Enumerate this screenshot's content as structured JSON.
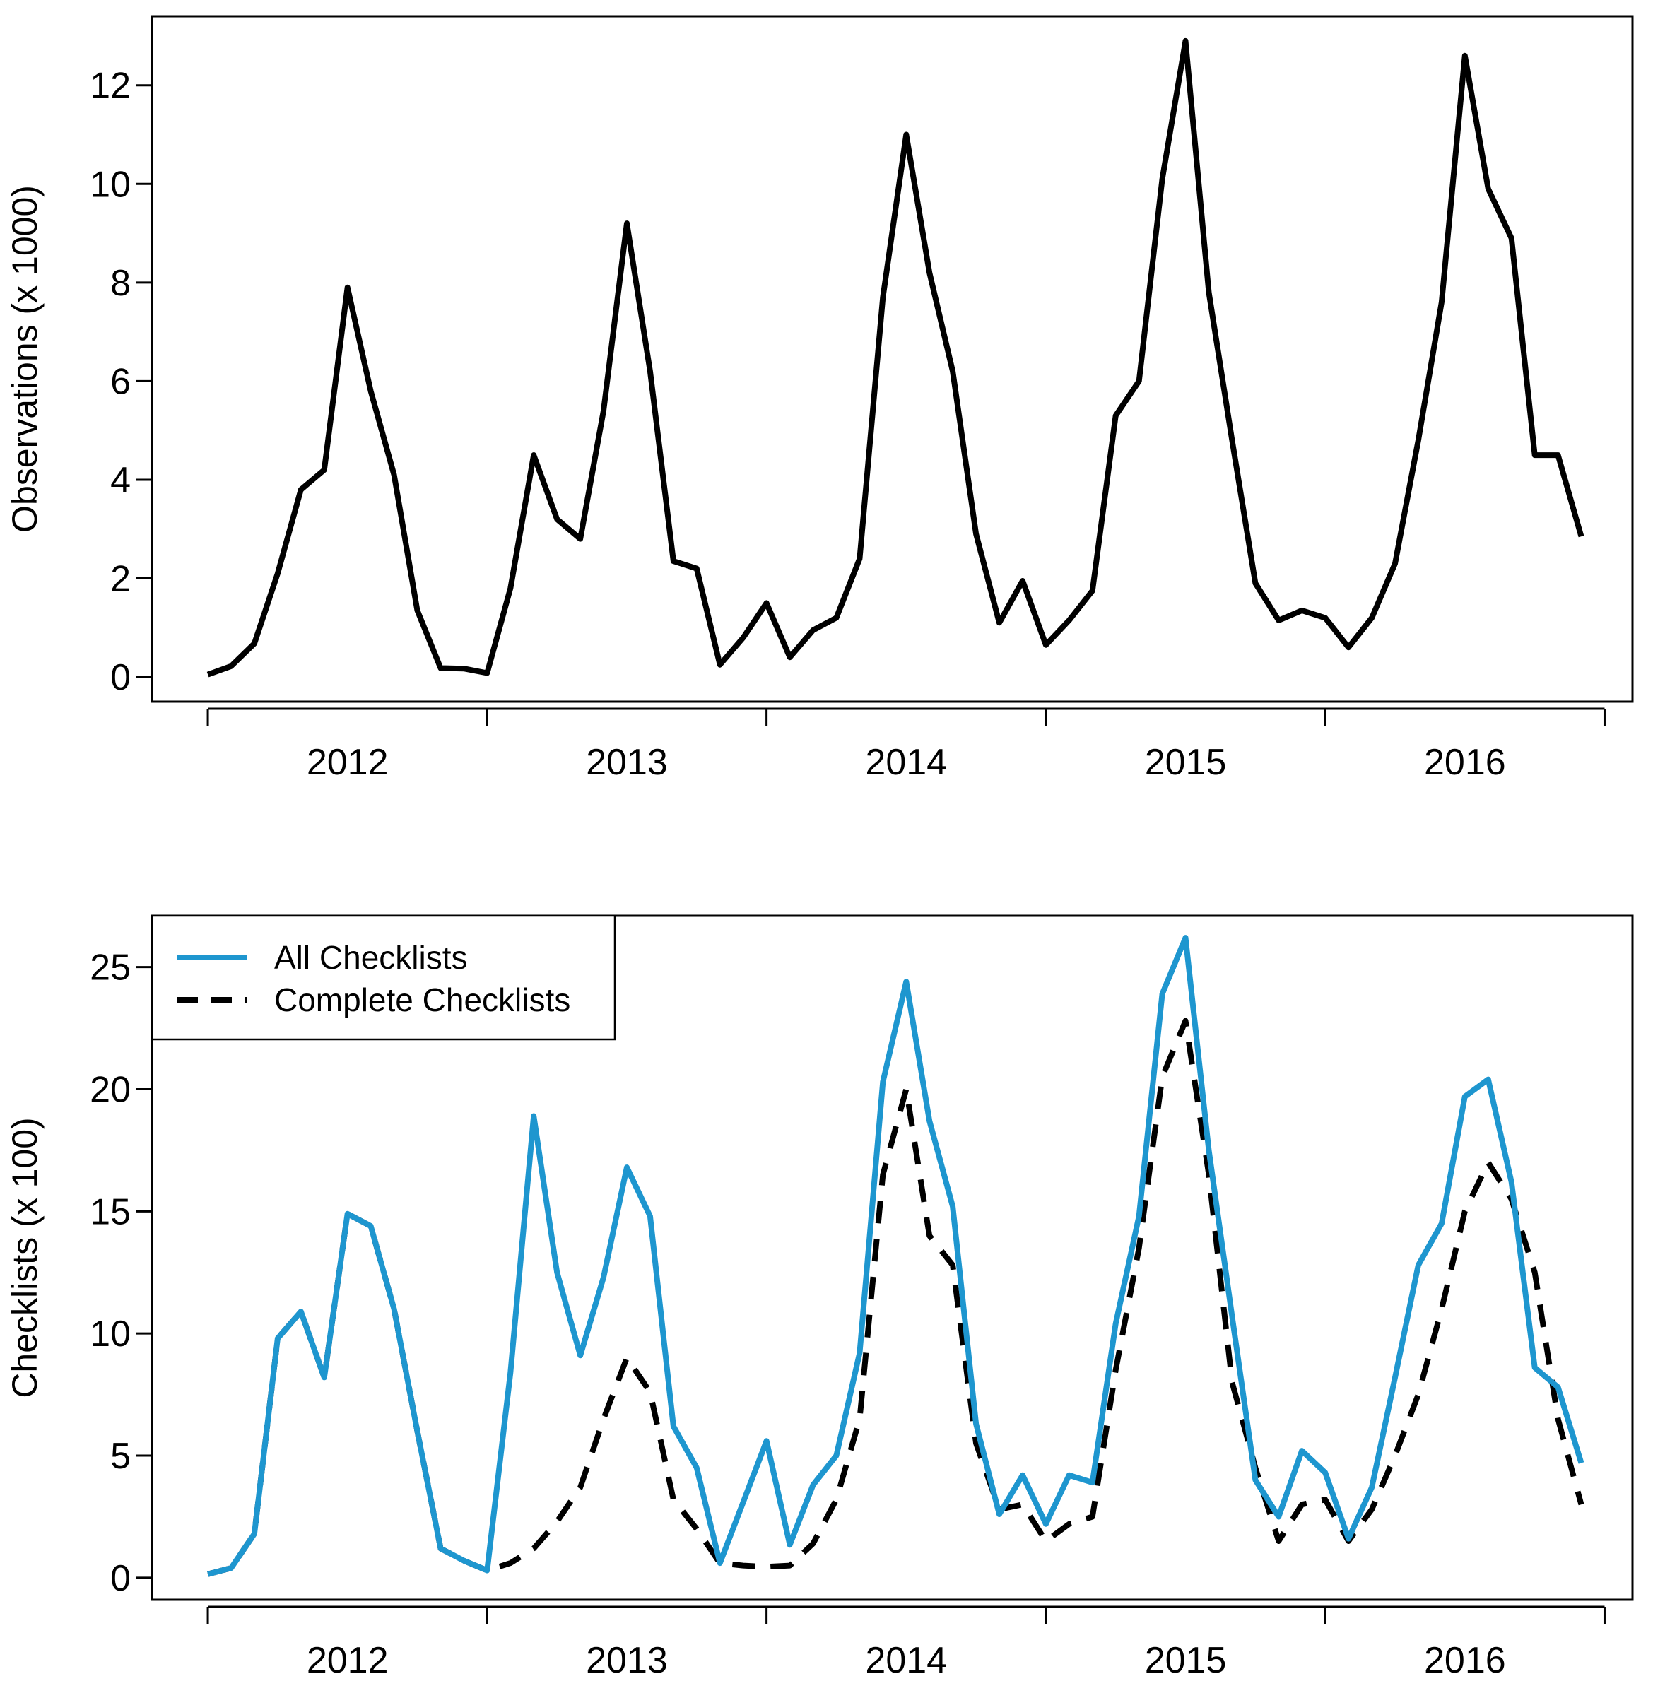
{
  "colors": {
    "observations_line": "#000000",
    "all_checklists": "#1e96cf",
    "complete_checklists": "#000000",
    "axes": "#000000",
    "background": "#ffffff"
  },
  "chart_data": [
    {
      "type": "line",
      "title": "",
      "xlabel": "",
      "ylabel": "Observations (x 1000)",
      "x_start": 2011.5,
      "x_step": 0.08333333,
      "xlim": [
        2011.3,
        2016.6
      ],
      "ylim": [
        -0.5,
        13.4
      ],
      "x_ticks": [
        2011.5,
        2012.5,
        2013.5,
        2014.5,
        2015.5,
        2016.5
      ],
      "x_tick_labels": [
        {
          "label": "2012",
          "x": 2012.0
        },
        {
          "label": "2013",
          "x": 2013.0
        },
        {
          "label": "2014",
          "x": 2014.0
        },
        {
          "label": "2015",
          "x": 2015.0
        },
        {
          "label": "2016",
          "x": 2016.0
        }
      ],
      "y_ticks": [
        0,
        2,
        4,
        6,
        8,
        10,
        12
      ],
      "y_tick_labels": [
        "0",
        "2",
        "4",
        "6",
        "8",
        "10",
        "12"
      ],
      "grid": false,
      "series": [
        {
          "name": "Observations",
          "style": "solid",
          "values": [
            0.05,
            0.22,
            0.68,
            2.1,
            3.8,
            4.2,
            7.9,
            5.8,
            4.1,
            1.35,
            0.18,
            0.17,
            0.08,
            1.8,
            4.5,
            3.2,
            2.8,
            5.4,
            9.2,
            6.2,
            2.35,
            2.2,
            0.25,
            0.8,
            1.5,
            0.4,
            0.95,
            1.2,
            2.4,
            7.7,
            11.0,
            8.2,
            6.2,
            2.9,
            1.1,
            1.95,
            0.65,
            1.15,
            1.75,
            5.3,
            6.0,
            10.1,
            12.9,
            7.8,
            4.8,
            1.9,
            1.15,
            1.35,
            1.2,
            0.6,
            1.2,
            2.3,
            4.8,
            7.6,
            12.6,
            9.9,
            8.9,
            4.5,
            4.5,
            2.85
          ]
        }
      ]
    },
    {
      "type": "line",
      "title": "",
      "xlabel": "",
      "ylabel": "Checklists (x 100)",
      "x_start": 2011.5,
      "x_step": 0.08333333,
      "xlim": [
        2011.3,
        2016.6
      ],
      "ylim": [
        -0.9,
        27.1
      ],
      "x_ticks": [
        2011.5,
        2012.5,
        2013.5,
        2014.5,
        2015.5,
        2016.5
      ],
      "x_tick_labels": [
        {
          "label": "2012",
          "x": 2012.0
        },
        {
          "label": "2013",
          "x": 2013.0
        },
        {
          "label": "2014",
          "x": 2014.0
        },
        {
          "label": "2015",
          "x": 2015.0
        },
        {
          "label": "2016",
          "x": 2016.0
        }
      ],
      "y_ticks": [
        0,
        5,
        10,
        15,
        20,
        25
      ],
      "y_tick_labels": [
        "0",
        "5",
        "10",
        "15",
        "20",
        "25"
      ],
      "grid": false,
      "legend_position": "top-left",
      "series": [
        {
          "name": "All Checklists",
          "style": "solid",
          "values": [
            0.15,
            0.4,
            1.8,
            9.8,
            10.9,
            8.2,
            14.9,
            14.4,
            11.0,
            6.0,
            1.2,
            0.7,
            0.3,
            8.4,
            18.9,
            12.5,
            9.1,
            12.3,
            16.8,
            14.8,
            6.2,
            4.5,
            0.6,
            3.1,
            5.6,
            1.35,
            3.8,
            5.0,
            9.2,
            20.3,
            24.4,
            18.7,
            15.2,
            6.3,
            2.6,
            4.2,
            2.2,
            4.2,
            3.9,
            10.4,
            14.8,
            23.9,
            26.2,
            17.5,
            10.7,
            4.0,
            2.5,
            5.2,
            4.3,
            1.6,
            3.7,
            8.2,
            12.8,
            14.5,
            19.7,
            20.4,
            16.2,
            8.6,
            7.8,
            4.7
          ]
        },
        {
          "name": "Complete Checklists",
          "style": "dashed",
          "values": [
            0.15,
            0.4,
            1.8,
            9.8,
            10.9,
            8.2,
            14.9,
            14.4,
            11.0,
            6.0,
            1.2,
            0.7,
            0.3,
            0.6,
            1.2,
            2.3,
            3.7,
            6.5,
            9.0,
            7.6,
            3.2,
            2.0,
            0.6,
            0.5,
            0.45,
            0.5,
            1.4,
            3.2,
            6.5,
            16.5,
            20.0,
            14.0,
            12.8,
            5.5,
            2.8,
            3.0,
            1.5,
            2.2,
            2.5,
            8.5,
            13.5,
            20.5,
            22.8,
            16.5,
            8.0,
            4.5,
            1.5,
            3.0,
            3.2,
            1.5,
            2.8,
            5.0,
            7.5,
            11.0,
            15.0,
            17.0,
            15.5,
            12.5,
            6.5,
            3.0
          ]
        }
      ]
    }
  ]
}
